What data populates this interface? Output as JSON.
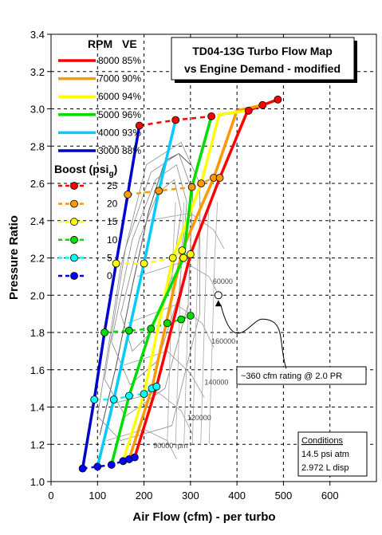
{
  "chart_data": {
    "type": "line",
    "title_line1": "TD04-13G Turbo Flow Map",
    "title_line2": "vs Engine Demand - modified",
    "xlabel": "Air Flow (cfm) - per turbo",
    "ylabel": "Pressure Ratio",
    "xlim": [
      0,
      700
    ],
    "ylim": [
      1.0,
      3.4
    ],
    "x_ticks": [
      "0",
      "100",
      "200",
      "300",
      "400",
      "500",
      "600"
    ],
    "y_ticks": [
      "1.0",
      "1.2",
      "1.4",
      "1.6",
      "1.8",
      "2.0",
      "2.2",
      "2.4",
      "2.6",
      "2.8",
      "3.0",
      "3.2",
      "3.4"
    ],
    "grid": true,
    "legend_rpm_header": "RPM",
    "legend_ve_header": "VE",
    "rpm_series": [
      {
        "rpm": "8000",
        "ve": "85%",
        "color": "#ff0000",
        "points": [
          [
            180,
            1.13
          ],
          [
            227,
            1.51
          ],
          [
            300,
            2.22
          ],
          [
            363,
            2.63
          ],
          [
            423,
            2.99
          ],
          [
            488,
            3.05
          ]
        ]
      },
      {
        "rpm": "7000",
        "ve": "90%",
        "color": "#ff9900",
        "points": [
          [
            168,
            1.12
          ],
          [
            217,
            1.5
          ],
          [
            282,
            2.24
          ],
          [
            350,
            2.63
          ],
          [
            400,
            2.99
          ],
          [
            455,
            3.02
          ]
        ]
      },
      {
        "rpm": "6000",
        "ve": "94%",
        "color": "#ffff00",
        "points": [
          [
            155,
            1.11
          ],
          [
            200,
            1.47
          ],
          [
            262,
            2.2
          ],
          [
            323,
            2.6
          ],
          [
            362,
            2.97
          ],
          [
            425,
            2.99
          ]
        ]
      },
      {
        "rpm": "5000",
        "ve": "96%",
        "color": "#00dd00",
        "points": [
          [
            130,
            1.09
          ],
          [
            168,
            1.46
          ],
          [
            215,
            1.82
          ],
          [
            285,
            2.2
          ],
          [
            303,
            2.58
          ],
          [
            345,
            2.96
          ]
        ]
      },
      {
        "rpm": "4000",
        "ve": "93%",
        "color": "#00ccff",
        "points": [
          [
            100,
            1.08
          ],
          [
            135,
            1.44
          ],
          [
            168,
            1.81
          ],
          [
            200,
            2.17
          ],
          [
            232,
            2.56
          ],
          [
            268,
            2.94
          ]
        ]
      },
      {
        "rpm": "3000",
        "ve": "88%",
        "color": "#0000cc",
        "points": [
          [
            68,
            1.07
          ],
          [
            93,
            1.44
          ],
          [
            115,
            1.8
          ],
          [
            140,
            2.17
          ],
          [
            165,
            2.54
          ],
          [
            190,
            2.91
          ]
        ]
      }
    ],
    "boost_header": "Boost (psi",
    "boost_header_sub": "g",
    "boost_header_close": ")",
    "boost_series": [
      {
        "label": "25",
        "color": "#ff0000",
        "points": [
          [
            190,
            2.91
          ],
          [
            268,
            2.94
          ],
          [
            345,
            2.96
          ],
          [
            425,
            2.99
          ],
          [
            455,
            3.02
          ],
          [
            488,
            3.05
          ]
        ]
      },
      {
        "label": "20",
        "color": "#ff9900",
        "points": [
          [
            165,
            2.54
          ],
          [
            232,
            2.56
          ],
          [
            303,
            2.58
          ],
          [
            323,
            2.6
          ],
          [
            350,
            2.63
          ],
          [
            363,
            2.63
          ]
        ]
      },
      {
        "label": "15",
        "color": "#ffff00",
        "points": [
          [
            140,
            2.17
          ],
          [
            200,
            2.17
          ],
          [
            262,
            2.2
          ],
          [
            285,
            2.2
          ],
          [
            282,
            2.24
          ],
          [
            300,
            2.22
          ]
        ]
      },
      {
        "label": "10",
        "color": "#00dd00",
        "points": [
          [
            115,
            1.8
          ],
          [
            168,
            1.81
          ],
          [
            215,
            1.82
          ],
          [
            250,
            1.85
          ],
          [
            280,
            1.87
          ],
          [
            300,
            1.89
          ]
        ]
      },
      {
        "label": "5",
        "color": "#00ffff",
        "points": [
          [
            93,
            1.44
          ],
          [
            135,
            1.44
          ],
          [
            168,
            1.46
          ],
          [
            200,
            1.47
          ],
          [
            217,
            1.5
          ],
          [
            227,
            1.51
          ]
        ]
      },
      {
        "label": "0",
        "color": "#0000ff",
        "points": [
          [
            68,
            1.07
          ],
          [
            100,
            1.08
          ],
          [
            130,
            1.09
          ],
          [
            155,
            1.11
          ],
          [
            168,
            1.12
          ],
          [
            180,
            1.13
          ]
        ]
      }
    ],
    "map_speed_labels": [
      "60000",
      "160000",
      "140000",
      "120000",
      "90000 rpm"
    ],
    "callout_point": [
      360,
      2.0
    ],
    "callout_text": "~360 cfm rating @ 2.0 PR",
    "conditions_title": "Conditions",
    "conditions_line1": "14.5 psi atm",
    "conditions_line2": "2.972 L disp"
  }
}
